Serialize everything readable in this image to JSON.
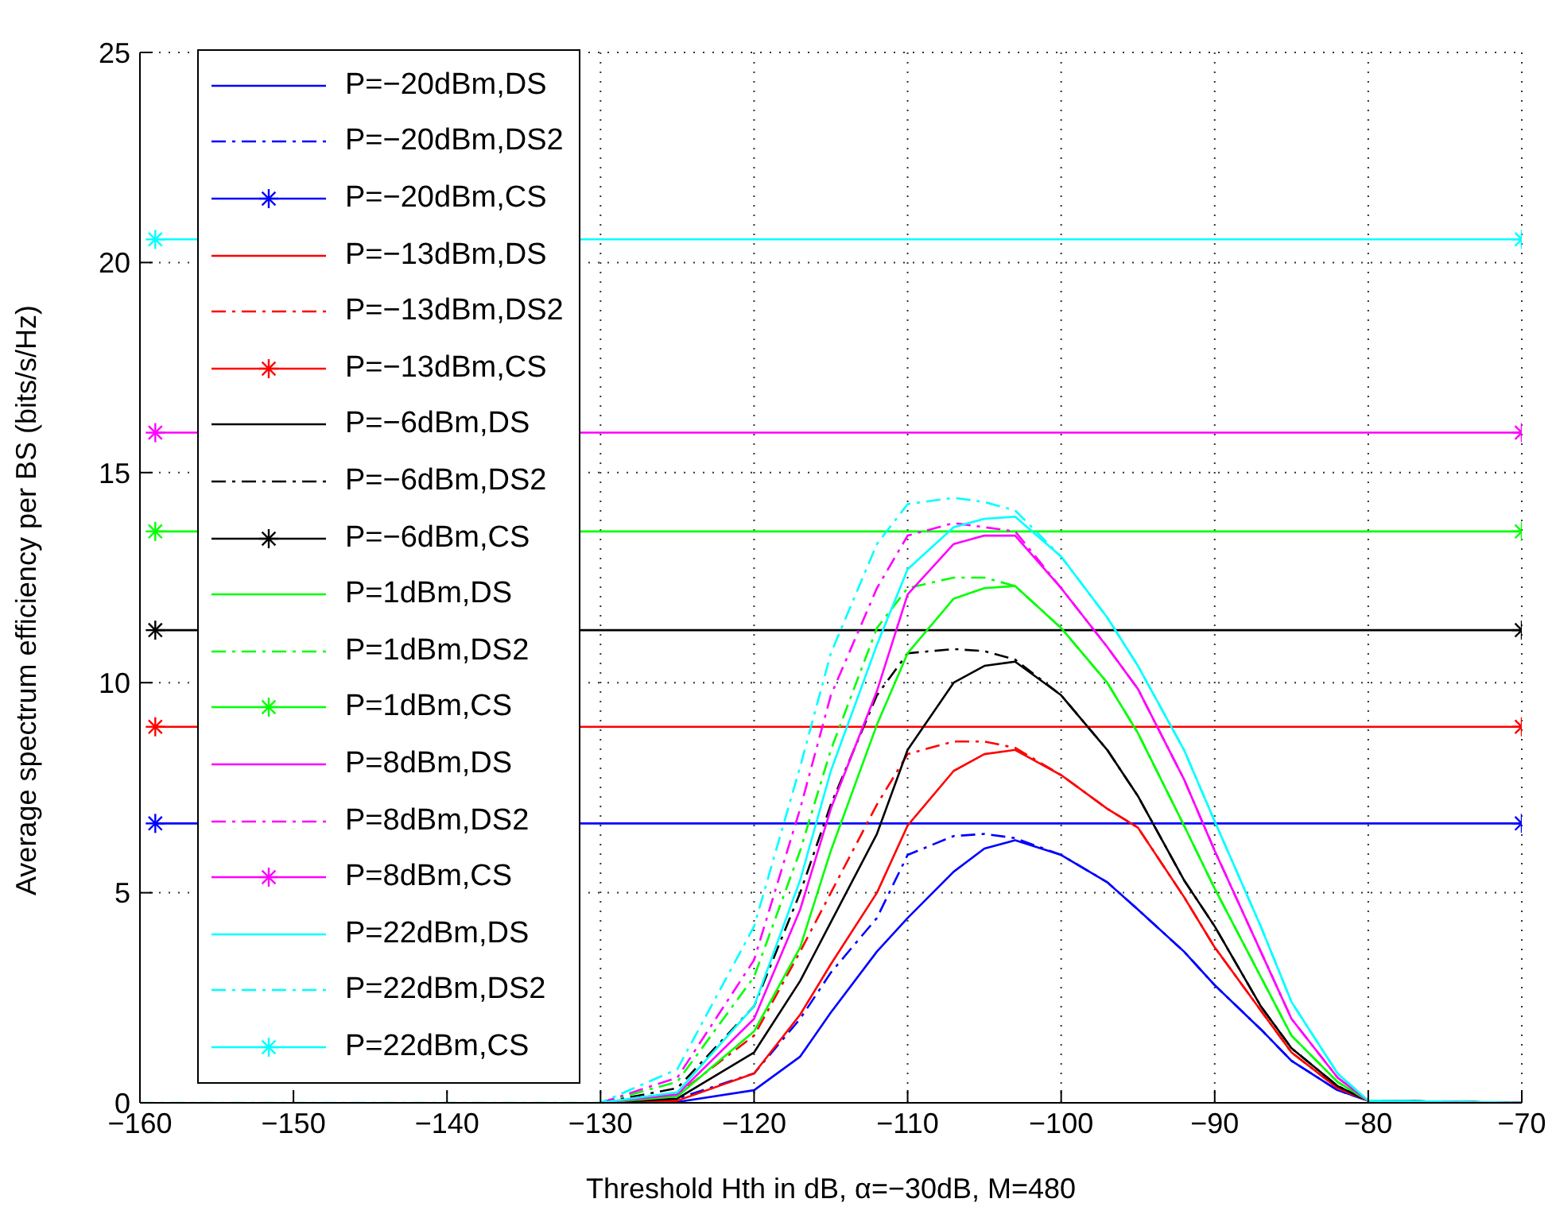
{
  "chart_data": {
    "type": "line",
    "xlabel": "Threshold Hth in dB, α=−30dB, M=480",
    "ylabel": "Average spectrum efficiency per BS (bits/s/Hz)",
    "x": [
      -160,
      -159,
      -130,
      -125,
      -120,
      -117,
      -115,
      -112,
      -110,
      -107,
      -105,
      -103,
      -100,
      -97,
      -95,
      -92,
      -90,
      -87,
      -85,
      -82,
      -80,
      -70
    ],
    "xlim": [
      -160,
      -70
    ],
    "xticks": [
      -160,
      -150,
      -140,
      -130,
      -120,
      -110,
      -100,
      -90,
      -80,
      -70
    ],
    "ylim": [
      0,
      25
    ],
    "yticks": [
      0,
      5,
      10,
      15,
      20,
      25
    ],
    "grid": true,
    "legend": "top left",
    "marker": "none",
    "line_style": "solid",
    "series": [
      {
        "name": "P=−20dBm,DS",
        "color": "#0000ff",
        "values": [
          null,
          null,
          0,
          0.02,
          0.3,
          1.1,
          2.15,
          3.6,
          4.4,
          5.5,
          6.05,
          6.25,
          5.9,
          5.25,
          4.6,
          3.6,
          2.8,
          1.75,
          1,
          0.3,
          0.05,
          0
        ]
      },
      {
        "name": "P=−20dBm,DS2",
        "color": "#0000ff",
        "line_style": "dashed",
        "values": [
          null,
          null,
          0,
          0.1,
          0.7,
          2,
          3.1,
          4.4,
          5.9,
          6.35,
          6.4,
          6.3,
          5.9,
          5.25,
          4.6,
          3.6,
          2.8,
          1.75,
          1,
          0.3,
          0.05,
          0
        ]
      },
      {
        "name": "P=−20dBm,CS",
        "color": "#0000ff",
        "marker": "cross",
        "values": [
          null,
          6.65,
          null,
          null,
          null,
          null,
          null,
          null,
          null,
          null,
          null,
          null,
          null,
          null,
          null,
          null,
          null,
          null,
          null,
          null,
          null,
          6.65
        ]
      },
      {
        "name": "P=−13dBm,DS",
        "color": "#ff0000",
        "values": [
          null,
          null,
          0,
          0.05,
          0.7,
          2.1,
          3.3,
          5,
          6.6,
          7.9,
          8.3,
          8.4,
          7.8,
          7,
          6.55,
          4.9,
          3.7,
          2.2,
          1.2,
          0.35,
          0.05,
          0
        ]
      },
      {
        "name": "P=−13dBm,DS2",
        "color": "#ff0000",
        "line_style": "dashed",
        "values": [
          null,
          null,
          0,
          0.2,
          1.6,
          3.6,
          5,
          7.1,
          8.3,
          8.6,
          8.6,
          8.45,
          7.8,
          7,
          6.55,
          4.9,
          3.7,
          2.2,
          1.2,
          0.35,
          0.05,
          0
        ]
      },
      {
        "name": "P=−13dBm,CS",
        "color": "#ff0000",
        "marker": "cross",
        "values": [
          null,
          8.95,
          null,
          null,
          null,
          null,
          null,
          null,
          null,
          null,
          null,
          null,
          null,
          null,
          null,
          null,
          null,
          null,
          null,
          null,
          null,
          8.95
        ]
      },
      {
        "name": "P=−6dBm,DS",
        "color": "#000000",
        "values": [
          null,
          null,
          0,
          0.1,
          1.2,
          2.9,
          4.3,
          6.4,
          8.4,
          10,
          10.4,
          10.5,
          9.7,
          8.4,
          7.3,
          5.3,
          4.2,
          2.3,
          1.3,
          0.4,
          0.05,
          0
        ]
      },
      {
        "name": "P=−6dBm,DS2",
        "color": "#000000",
        "line_style": "dashed",
        "values": [
          null,
          null,
          0,
          0.35,
          2.3,
          5,
          7.1,
          9.7,
          10.7,
          10.8,
          10.75,
          10.55,
          9.7,
          8.4,
          7.3,
          5.3,
          4.2,
          2.3,
          1.3,
          0.4,
          0.05,
          0
        ]
      },
      {
        "name": "P=−6dBm,CS",
        "color": "#000000",
        "marker": "cross",
        "values": [
          null,
          11.25,
          null,
          null,
          null,
          null,
          null,
          null,
          null,
          null,
          null,
          null,
          null,
          null,
          null,
          null,
          null,
          null,
          null,
          null,
          null,
          11.25
        ]
      },
      {
        "name": "P=1dBm,DS",
        "color": "#00ff00",
        "values": [
          null,
          null,
          0,
          0.15,
          1.7,
          3.7,
          6,
          9,
          10.7,
          12,
          12.25,
          12.3,
          11.3,
          10,
          8.8,
          6.6,
          5.1,
          3,
          1.6,
          0.5,
          0.05,
          0
        ]
      },
      {
        "name": "P=1dBm,DS2",
        "color": "#00ff00",
        "line_style": "dashed",
        "values": [
          null,
          null,
          0,
          0.5,
          3,
          6,
          8.4,
          11.3,
          12.25,
          12.5,
          12.5,
          12.3,
          11.3,
          10,
          8.8,
          6.6,
          5.1,
          3,
          1.6,
          0.5,
          0.05,
          0
        ]
      },
      {
        "name": "P=1dBm,CS",
        "color": "#00ff00",
        "marker": "cross",
        "values": [
          null,
          13.6,
          null,
          null,
          null,
          null,
          null,
          null,
          null,
          null,
          null,
          null,
          null,
          null,
          null,
          null,
          null,
          null,
          null,
          null,
          null,
          13.6
        ]
      },
      {
        "name": "P=8dBm,DS",
        "color": "#ff00ff",
        "values": [
          null,
          null,
          0,
          0.2,
          2,
          4.6,
          7,
          9.8,
          12.1,
          13.3,
          13.5,
          13.5,
          12.25,
          10.85,
          9.85,
          7.7,
          6,
          3.6,
          2,
          0.6,
          0.05,
          0
        ]
      },
      {
        "name": "P=8dBm,DS2",
        "color": "#ff00ff",
        "line_style": "dashed",
        "values": [
          null,
          null,
          0,
          0.6,
          3.4,
          7,
          9.7,
          12.25,
          13.5,
          13.8,
          13.7,
          13.6,
          12.25,
          10.85,
          9.85,
          7.7,
          6,
          3.6,
          2,
          0.6,
          0.05,
          0
        ]
      },
      {
        "name": "P=8dBm,CS",
        "color": "#ff00ff",
        "marker": "cross",
        "values": [
          null,
          15.95,
          null,
          null,
          null,
          null,
          null,
          null,
          null,
          null,
          null,
          null,
          null,
          null,
          null,
          null,
          null,
          null,
          null,
          null,
          null,
          15.95
        ]
      },
      {
        "name": "P=22dBm,DS",
        "color": "#00ffff",
        "values": [
          null,
          null,
          0,
          0.25,
          2.3,
          5.3,
          7.9,
          10.9,
          12.7,
          13.7,
          13.9,
          13.95,
          13,
          11.55,
          10.4,
          8.4,
          6.7,
          4.2,
          2.4,
          0.7,
          0.05,
          0
        ]
      },
      {
        "name": "P=22dBm,DS2",
        "color": "#00ffff",
        "line_style": "dashed",
        "values": [
          0,
          0,
          0,
          0.8,
          4.2,
          8,
          10.7,
          13.3,
          14.25,
          14.4,
          14.3,
          14.1,
          13,
          11.55,
          10.4,
          8.4,
          6.7,
          4.2,
          2.4,
          0.7,
          0.05,
          0
        ]
      },
      {
        "name": "P=22dBm,CS",
        "color": "#00ffff",
        "marker": "cross",
        "values": [
          null,
          20.55,
          null,
          null,
          null,
          null,
          null,
          null,
          null,
          null,
          null,
          null,
          null,
          null,
          null,
          null,
          null,
          null,
          null,
          null,
          null,
          20.55
        ]
      }
    ]
  }
}
